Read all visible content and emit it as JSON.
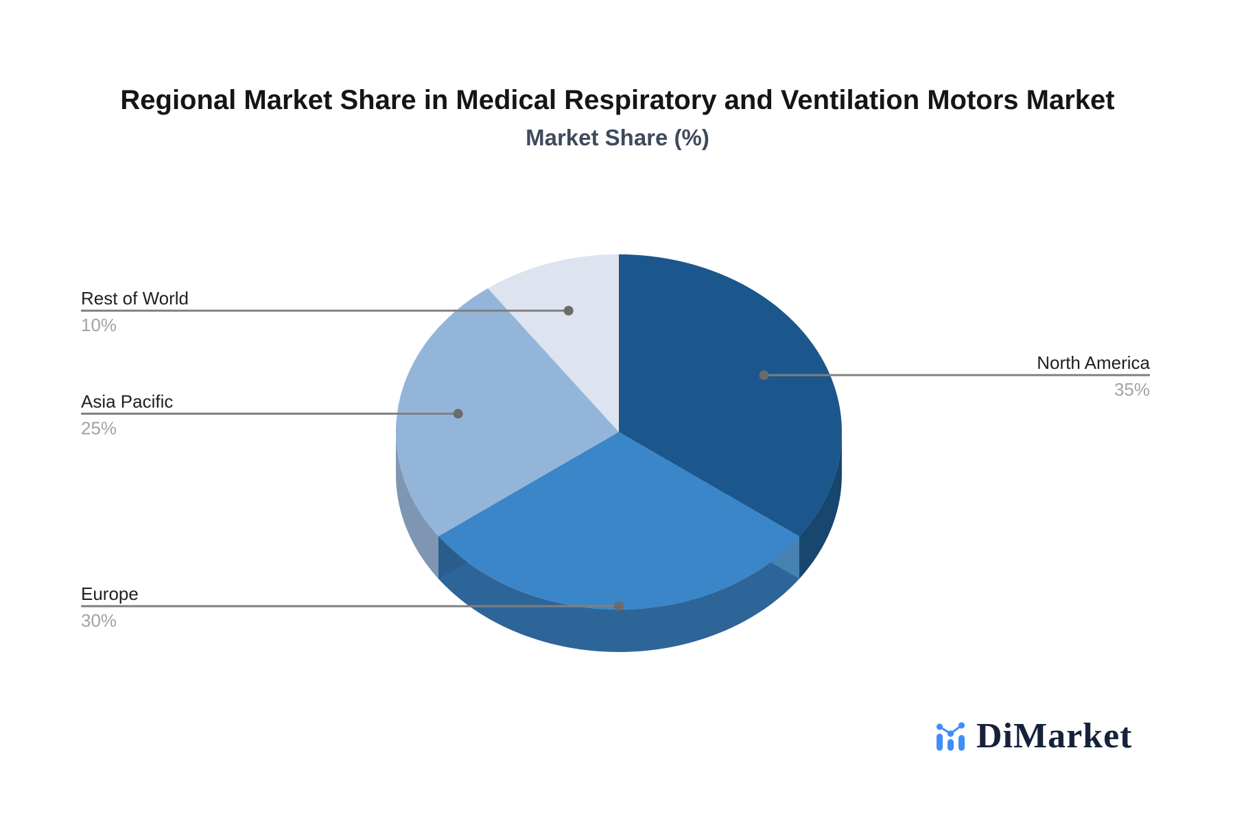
{
  "page": {
    "background": "#ffffff"
  },
  "header": {
    "title": "Regional Market Share in Medical Respiratory and Ventilation Motors Market",
    "subtitle": "Market Share (%)"
  },
  "chart_data": {
    "type": "pie",
    "style": "3d",
    "title": "Regional Market Share in Medical Respiratory and Ventilation Motors Market",
    "subtitle": "Market Share (%)",
    "unit": "%",
    "start_angle_deg": 0,
    "direction": "clockwise",
    "legend": "none",
    "categories": [
      "North America",
      "Europe",
      "Asia Pacific",
      "Rest of World"
    ],
    "values": [
      35,
      30,
      25,
      10
    ],
    "slices": [
      {
        "label": "North America",
        "value": 35,
        "pct_text": "35%",
        "color": "#1b578c",
        "side_color": "#17466f",
        "edge_color": "#4681b2",
        "label_side": "right"
      },
      {
        "label": "Europe",
        "value": 30,
        "pct_text": "30%",
        "color": "#3a86c8",
        "side_color": "#2e6598",
        "edge_color": "#2a5c8c",
        "label_side": "left"
      },
      {
        "label": "Asia Pacific",
        "value": 25,
        "pct_text": "25%",
        "color": "#93b5d9",
        "side_color": "#7e96b2",
        "label_side": "left"
      },
      {
        "label": "Rest of World",
        "value": 10,
        "pct_text": "10%",
        "color": "#dde4ef",
        "label_side": "left"
      }
    ],
    "colors": {
      "leader_line": "#7f7f7f",
      "leader_dot": "#6b6b6b",
      "label_text": "#1f1f1f",
      "value_text": "#a2a2a2"
    }
  },
  "branding": {
    "logo_text": "DiMarket",
    "logo_icon": "bar-chart-trend-icon",
    "icon_color": "#3e8ef7",
    "text_color": "#16223a"
  }
}
